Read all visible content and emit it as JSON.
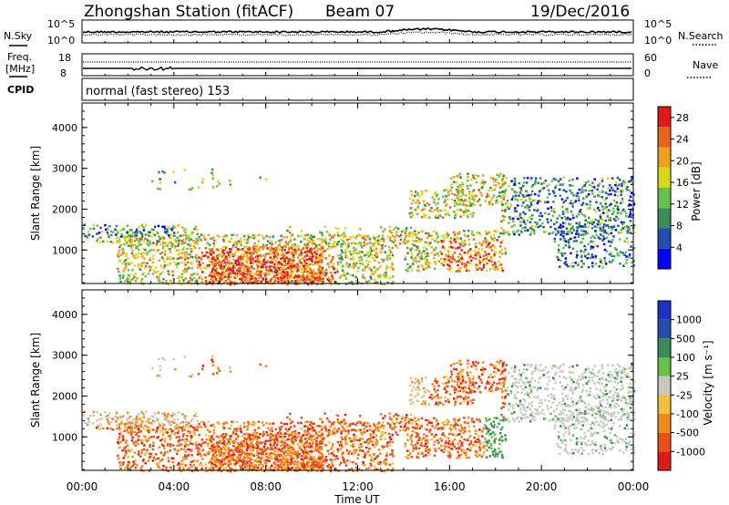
{
  "header": {
    "station": "Zhongshan Station (fitACF)",
    "beam": "Beam 07",
    "date": "19/Dec/2016"
  },
  "noise_panel": {
    "left_label": "N.Sky",
    "right_label": "N.Search",
    "left_ticks": [
      "10^5",
      "10^0"
    ],
    "right_ticks": [
      "10^5",
      "10^0"
    ]
  },
  "freq_panel": {
    "left_label_1": "Freq.",
    "left_label_2": "[MHz]",
    "right_label": "Nave",
    "left_ticks": [
      "18",
      "8"
    ],
    "right_ticks": [
      "60",
      "0"
    ]
  },
  "cpid": {
    "label": "CPID",
    "text": "normal (fast stereo) 153"
  },
  "colors": {
    "power_scale": [
      "#0000ff",
      "#214fad",
      "#3a8a5a",
      "#66c04a",
      "#d8d81a",
      "#f0a01a",
      "#e8641a",
      "#e01a1a"
    ],
    "velocity_scale": [
      "#e01a1a",
      "#e8501a",
      "#f08a1a",
      "#f0c040",
      "#c8c8c0",
      "#66c04a",
      "#3a8a5a",
      "#214fad",
      "#2030c0"
    ]
  },
  "chart_data": [
    {
      "type": "heatmap",
      "quantity": "Power",
      "xlabel": "",
      "ylabel": "Slant Range [km]",
      "x_ticks": [
        "00:00",
        "04:00",
        "08:00",
        "12:00",
        "16:00",
        "20:00",
        "00:00"
      ],
      "xlim_hours": [
        0,
        24
      ],
      "y_ticks": [
        1000,
        2000,
        3000,
        4000
      ],
      "ylim": [
        180,
        4600
      ],
      "colorbar": {
        "label": "Power [dB]",
        "ticks": [
          4,
          8,
          12,
          16,
          20,
          24,
          28
        ],
        "range": [
          0,
          30
        ]
      }
    },
    {
      "type": "heatmap",
      "quantity": "Velocity",
      "xlabel": "Time UT",
      "ylabel": "Slant Range [km]",
      "x_ticks": [
        "00:00",
        "04:00",
        "08:00",
        "12:00",
        "16:00",
        "20:00",
        "00:00"
      ],
      "xlim_hours": [
        0,
        24
      ],
      "y_ticks": [
        1000,
        2000,
        3000,
        4000
      ],
      "ylim": [
        180,
        4600
      ],
      "colorbar": {
        "label": "Velocity [m s⁻¹]",
        "ticks": [
          1000,
          500,
          100,
          25,
          -25,
          -100,
          -500,
          -1000
        ]
      }
    }
  ]
}
